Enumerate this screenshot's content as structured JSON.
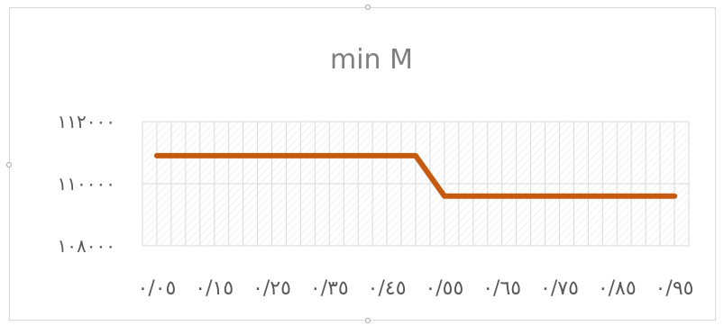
{
  "chart_data": {
    "type": "line",
    "title": "min M",
    "categories": [
      "٠/٠٥",
      "٠/١٥",
      "٠/٢٥",
      "٠/٣٥",
      "٠/٤٥",
      "٠/٥٥",
      "٠/٦٥",
      "٠/٧٥",
      "٠/٨٥",
      "٠/٩٥"
    ],
    "x": [
      0.05,
      0.1,
      0.15,
      0.2,
      0.25,
      0.3,
      0.35,
      0.4,
      0.45,
      0.5,
      0.55,
      0.6,
      0.65,
      0.7,
      0.75,
      0.8,
      0.85,
      0.9,
      0.95
    ],
    "series": [
      {
        "values": [
          110900,
          110900,
          110900,
          110900,
          110900,
          110900,
          110900,
          110900,
          110900,
          110900,
          109600,
          109600,
          109600,
          109600,
          109600,
          109600,
          109600,
          109600,
          109600
        ]
      }
    ],
    "ylim": [
      108000,
      112000
    ],
    "y_ticks": [
      108000,
      110000,
      112000
    ],
    "y_tick_labels": [
      "١٠٨٠٠٠",
      "١١٠٠٠٠",
      "١١٢٠٠٠"
    ],
    "grid": true,
    "colors": {
      "line": "#c55a11",
      "grid": "#d9d9d9",
      "text": "#595959",
      "title": "#7f7f7f"
    }
  }
}
